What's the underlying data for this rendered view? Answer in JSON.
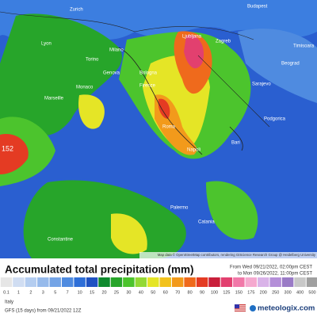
{
  "map": {
    "cities": [
      "Zurich",
      "Budapest",
      "Lyon",
      "Milano",
      "Torino",
      "Genova",
      "Monaco",
      "Bologna",
      "Firenze",
      "Marseille",
      "Ljubljana",
      "Zagreb",
      "Timisoara",
      "Beograd",
      "Sarajevo",
      "Podgorica",
      "Roma",
      "Napoli",
      "Bari",
      "Palermo",
      "Catania",
      "Constantine"
    ],
    "max_label": "152",
    "attribution": "Map data © OpenStreetMap contributors, rendering GIScience Research Group @ Heidelberg University"
  },
  "footer": {
    "title": "Accumulated total precipitation (mm)",
    "from": "From Wed 09/21/2022, 02:00pm CEST",
    "to": "to Mon 09/26/2022, 11:00pm CEST",
    "region": "Italy",
    "model": "GFS (15 days) from 09/21/2022 12Z",
    "brand": "meteologix.com"
  },
  "legend": {
    "values": [
      "0.1",
      1,
      2,
      3,
      5,
      7,
      10,
      15,
      20,
      25,
      30,
      40,
      50,
      60,
      70,
      80,
      90,
      100,
      125,
      150,
      175,
      200,
      250,
      300,
      400,
      500
    ],
    "colors": [
      "#e6e6e6",
      "#d0ddf2",
      "#b4cdf0",
      "#96baeb",
      "#74a4e6",
      "#4f8be0",
      "#2e6fd8",
      "#1f52c2",
      "#0f8a2e",
      "#27a52a",
      "#4cc42d",
      "#93d935",
      "#e5e526",
      "#f2c21d",
      "#f29a1b",
      "#ef6a1c",
      "#e43b23",
      "#c91f3b",
      "#e2406f",
      "#f178a8",
      "#f5a9cf",
      "#d9b3e8",
      "#b48fd8",
      "#9a7bc6",
      "#c8c8c8",
      "#a0a0a0"
    ]
  }
}
